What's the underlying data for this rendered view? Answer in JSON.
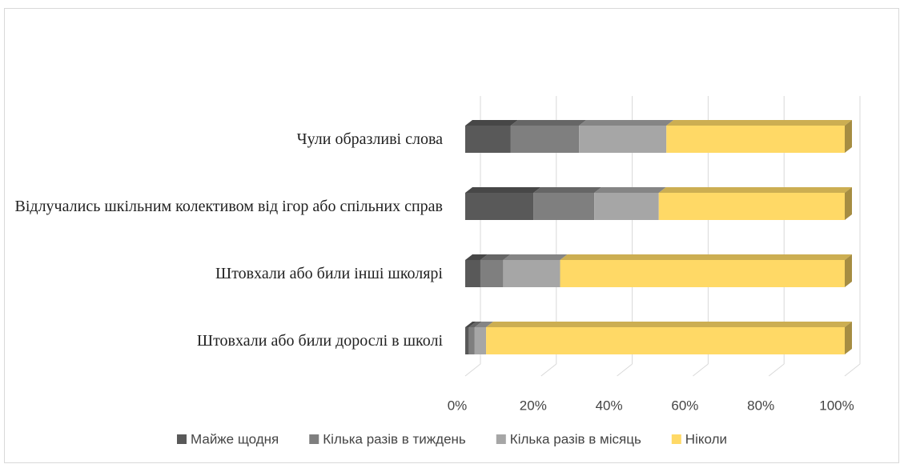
{
  "chart_data": {
    "type": "bar",
    "orientation": "horizontal",
    "stacked": true,
    "categories": [
      "Чули образливі слова",
      "Відлучались шкільним колективом від ігор або спільних справ",
      "Штовхали або били інші школярі",
      "Штовхали або били дорослі в школі"
    ],
    "series": [
      {
        "name": "Майже щодня",
        "color": "#595959",
        "values": [
          12,
          18,
          4,
          1
        ]
      },
      {
        "name": "Кілька разів в тиждень",
        "color": "#7f7f7f",
        "values": [
          18,
          16,
          6,
          1.5
        ]
      },
      {
        "name": "Кілька разів в місяць",
        "color": "#a6a6a6",
        "values": [
          23,
          17,
          15,
          3
        ]
      },
      {
        "name": "Ніколи",
        "color": "#ffd966",
        "values": [
          47,
          49,
          75,
          94.5
        ]
      }
    ],
    "xlim": [
      0,
      100
    ],
    "xticks": [
      {
        "value": 0,
        "label": "0%"
      },
      {
        "value": 20,
        "label": "20%"
      },
      {
        "value": 40,
        "label": "40%"
      },
      {
        "value": 60,
        "label": "60%"
      },
      {
        "value": 80,
        "label": "80%"
      },
      {
        "value": 100,
        "label": "100%"
      }
    ],
    "grid": true,
    "legend": "bottom"
  }
}
